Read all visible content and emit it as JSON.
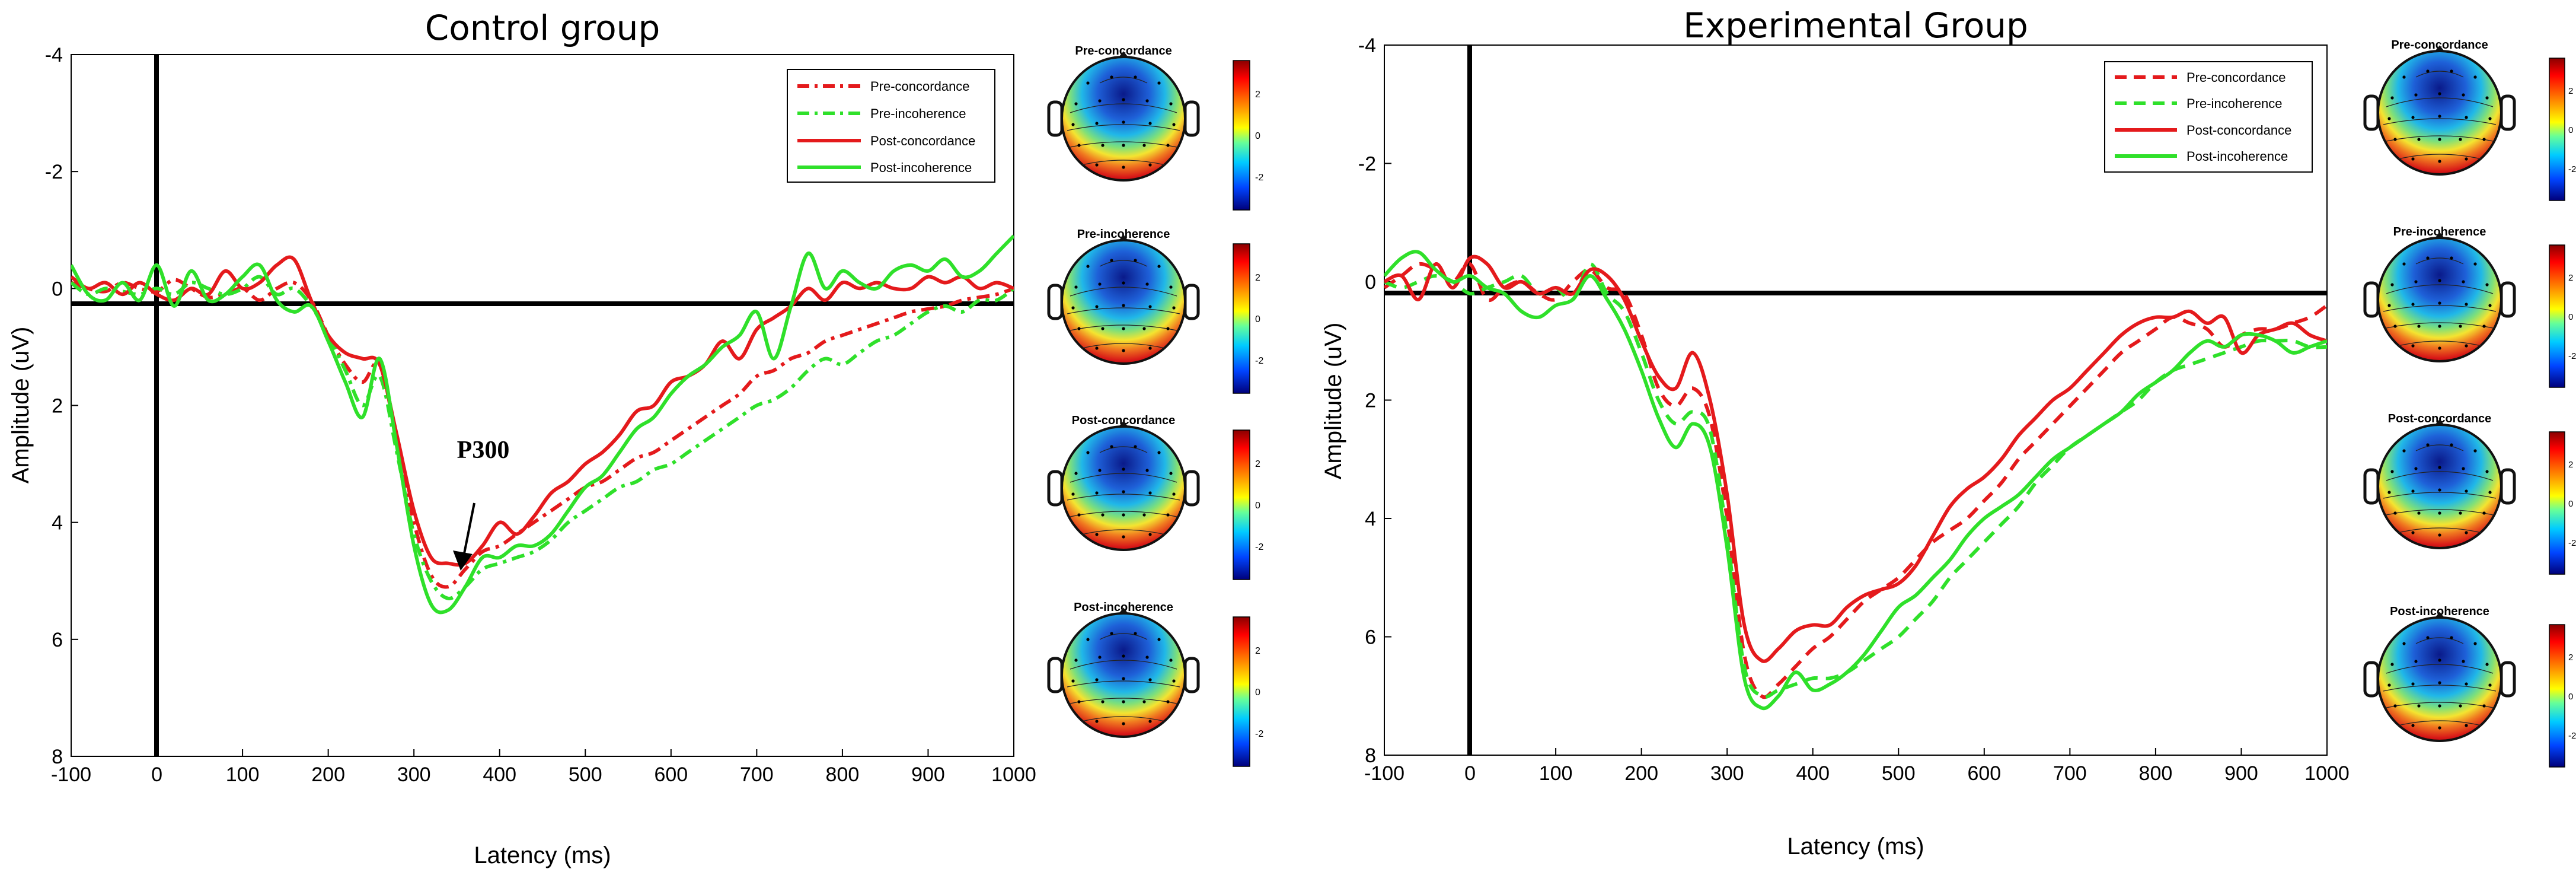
{
  "colors": {
    "red": "#e41a1c",
    "green": "#2fe02a",
    "axis": "#000000"
  },
  "legend_labels": [
    "Pre-concordance",
    "Pre-incoherence",
    "Post-concordance",
    "Post-incoherence"
  ],
  "topomap_scale": {
    "ticks": [
      "2",
      "0",
      "-2"
    ]
  },
  "chart_data": [
    {
      "type": "line",
      "title": "Control group",
      "xlabel": "Latency (ms)",
      "ylabel": "Amplitude (uV)",
      "xlim": [
        -100,
        1000
      ],
      "ylim": [
        -4,
        8
      ],
      "y_inverted": true,
      "xticks": [
        -100,
        0,
        100,
        200,
        300,
        400,
        500,
        600,
        700,
        800,
        900,
        1000
      ],
      "yticks": [
        -4,
        -2,
        0,
        2,
        4,
        6,
        8
      ],
      "legend_position": "top-right",
      "annotation": {
        "text": "P300",
        "x": 350,
        "y": 4.4
      },
      "series": [
        {
          "name": "Pre-concordance",
          "color": "#e41a1c",
          "dash": "dashdot",
          "x": [
            -100,
            -80,
            -60,
            -40,
            -20,
            0,
            20,
            40,
            60,
            80,
            100,
            120,
            140,
            160,
            180,
            200,
            220,
            240,
            260,
            280,
            300,
            320,
            340,
            360,
            380,
            400,
            420,
            440,
            460,
            480,
            500,
            520,
            540,
            560,
            580,
            600,
            620,
            640,
            660,
            680,
            700,
            720,
            740,
            760,
            780,
            800,
            820,
            840,
            860,
            880,
            900,
            920,
            940,
            960,
            980,
            1000
          ],
          "y": [
            -0.1,
            0.0,
            0.05,
            -0.1,
            0.0,
            0.05,
            -0.15,
            0.0,
            0.15,
            0.1,
            0.0,
            0.2,
            0.0,
            -0.1,
            0.2,
            0.8,
            1.3,
            1.6,
            1.3,
            2.6,
            4.0,
            4.9,
            5.1,
            4.8,
            4.5,
            4.4,
            4.2,
            4.0,
            3.8,
            3.6,
            3.4,
            3.3,
            3.1,
            2.9,
            2.8,
            2.6,
            2.4,
            2.2,
            2.0,
            1.8,
            1.5,
            1.4,
            1.2,
            1.1,
            0.9,
            0.8,
            0.7,
            0.6,
            0.5,
            0.4,
            0.35,
            0.3,
            0.2,
            0.15,
            0.1,
            0.0
          ]
        },
        {
          "name": "Pre-incoherence",
          "color": "#2fe02a",
          "dash": "dashdot",
          "x": [
            -100,
            -80,
            -60,
            -40,
            -20,
            0,
            20,
            40,
            60,
            80,
            100,
            120,
            140,
            160,
            180,
            200,
            220,
            240,
            260,
            280,
            300,
            320,
            340,
            360,
            380,
            400,
            420,
            440,
            460,
            480,
            500,
            520,
            540,
            560,
            580,
            600,
            620,
            640,
            660,
            680,
            700,
            720,
            740,
            760,
            780,
            800,
            820,
            840,
            860,
            880,
            900,
            920,
            940,
            960,
            980,
            1000
          ],
          "y": [
            -0.1,
            0.1,
            0.0,
            0.05,
            0.1,
            0.0,
            0.1,
            -0.1,
            0.0,
            0.1,
            0.0,
            -0.2,
            0.1,
            0.0,
            0.3,
            0.8,
            1.4,
            2.0,
            1.5,
            2.8,
            4.2,
            5.0,
            5.3,
            5.1,
            4.8,
            4.7,
            4.6,
            4.5,
            4.3,
            4.0,
            3.8,
            3.6,
            3.4,
            3.3,
            3.1,
            3.0,
            2.8,
            2.6,
            2.4,
            2.2,
            2.0,
            1.9,
            1.7,
            1.4,
            1.2,
            1.3,
            1.1,
            0.9,
            0.8,
            0.6,
            0.4,
            0.3,
            0.4,
            0.2,
            0.2,
            0.0
          ]
        },
        {
          "name": "Post-concordance",
          "color": "#e41a1c",
          "dash": "solid",
          "x": [
            -100,
            -80,
            -60,
            -40,
            -20,
            0,
            20,
            40,
            60,
            80,
            100,
            120,
            140,
            160,
            180,
            200,
            220,
            240,
            260,
            280,
            300,
            320,
            340,
            360,
            380,
            400,
            420,
            440,
            460,
            480,
            500,
            520,
            540,
            560,
            580,
            600,
            620,
            640,
            660,
            680,
            700,
            720,
            740,
            760,
            780,
            800,
            820,
            840,
            860,
            880,
            900,
            920,
            940,
            960,
            980,
            1000
          ],
          "y": [
            -0.2,
            0.0,
            -0.1,
            0.1,
            -0.1,
            0.1,
            0.2,
            0.0,
            0.1,
            -0.3,
            0.0,
            -0.1,
            -0.4,
            -0.5,
            0.2,
            0.8,
            1.1,
            1.2,
            1.3,
            2.5,
            3.8,
            4.6,
            4.7,
            4.7,
            4.4,
            4.0,
            4.2,
            3.9,
            3.5,
            3.3,
            3.0,
            2.8,
            2.5,
            2.1,
            2.0,
            1.6,
            1.5,
            1.3,
            0.9,
            1.2,
            0.7,
            0.5,
            0.3,
            0.0,
            0.2,
            -0.1,
            0.0,
            -0.1,
            0.0,
            0.0,
            -0.2,
            -0.1,
            -0.2,
            0.0,
            -0.1,
            0.0
          ]
        },
        {
          "name": "Post-incoherence",
          "color": "#2fe02a",
          "dash": "solid",
          "x": [
            -100,
            -80,
            -60,
            -40,
            -20,
            0,
            20,
            40,
            60,
            80,
            100,
            120,
            140,
            160,
            180,
            200,
            220,
            240,
            260,
            280,
            300,
            320,
            340,
            360,
            380,
            400,
            420,
            440,
            460,
            480,
            500,
            520,
            540,
            560,
            580,
            600,
            620,
            640,
            660,
            680,
            700,
            720,
            740,
            760,
            780,
            800,
            820,
            840,
            860,
            880,
            900,
            920,
            940,
            960,
            980,
            1000
          ],
          "y": [
            -0.4,
            0.1,
            0.2,
            -0.1,
            0.2,
            -0.4,
            0.3,
            -0.3,
            0.2,
            0.1,
            -0.2,
            -0.4,
            0.2,
            0.4,
            0.3,
            0.9,
            1.6,
            2.2,
            1.2,
            2.7,
            4.4,
            5.4,
            5.5,
            5.1,
            4.6,
            4.6,
            4.4,
            4.4,
            4.2,
            3.8,
            3.4,
            3.2,
            2.8,
            2.4,
            2.2,
            1.8,
            1.5,
            1.3,
            1.0,
            0.8,
            0.4,
            1.2,
            0.3,
            -0.6,
            0.0,
            -0.3,
            -0.1,
            0.0,
            -0.3,
            -0.4,
            -0.3,
            -0.5,
            -0.2,
            -0.3,
            -0.6,
            -0.9
          ]
        }
      ],
      "topomaps": [
        {
          "label": "Pre-concordance"
        },
        {
          "label": "Pre-incoherence"
        },
        {
          "label": "Post-concordance"
        },
        {
          "label": "Post-incoherence"
        }
      ]
    },
    {
      "type": "line",
      "title": "Experimental Group",
      "xlabel": "Latency (ms)",
      "ylabel": "Amplitude (uV)",
      "xlim": [
        -100,
        1000
      ],
      "ylim": [
        -4,
        8
      ],
      "y_inverted": true,
      "xticks": [
        -100,
        0,
        100,
        200,
        300,
        400,
        500,
        600,
        700,
        800,
        900,
        1000
      ],
      "yticks": [
        -4,
        -2,
        0,
        2,
        4,
        6,
        8
      ],
      "legend_position": "top-right",
      "series": [
        {
          "name": "Pre-concordance",
          "color": "#e41a1c",
          "dash": "dashed",
          "x": [
            -100,
            -80,
            -60,
            -40,
            -20,
            0,
            20,
            40,
            60,
            80,
            100,
            120,
            140,
            160,
            180,
            200,
            220,
            240,
            260,
            280,
            300,
            320,
            340,
            360,
            380,
            400,
            420,
            440,
            460,
            480,
            500,
            520,
            540,
            560,
            580,
            600,
            620,
            640,
            660,
            680,
            700,
            720,
            740,
            760,
            780,
            800,
            820,
            840,
            860,
            880,
            900,
            920,
            940,
            960,
            980,
            1000
          ],
          "y": [
            0.1,
            -0.1,
            -0.3,
            -0.2,
            0.0,
            -0.3,
            0.3,
            0.1,
            0.0,
            0.2,
            0.3,
            0.0,
            -0.2,
            0.1,
            0.2,
            0.9,
            1.8,
            2.1,
            1.8,
            2.3,
            4.0,
            6.3,
            7.0,
            6.8,
            6.5,
            6.2,
            6.0,
            5.7,
            5.4,
            5.2,
            5.0,
            4.7,
            4.4,
            4.2,
            4.0,
            3.7,
            3.4,
            3.0,
            2.7,
            2.4,
            2.1,
            1.8,
            1.5,
            1.2,
            1.0,
            0.8,
            0.6,
            0.7,
            0.8,
            1.1,
            0.9,
            0.8,
            0.8,
            0.7,
            0.6,
            0.4
          ]
        },
        {
          "name": "Pre-incoherence",
          "color": "#2fe02a",
          "dash": "dashed",
          "x": [
            -100,
            -80,
            -60,
            -40,
            -20,
            0,
            20,
            40,
            60,
            80,
            100,
            120,
            140,
            160,
            180,
            200,
            220,
            240,
            260,
            280,
            300,
            320,
            340,
            360,
            380,
            400,
            420,
            440,
            460,
            480,
            500,
            520,
            540,
            560,
            580,
            600,
            620,
            640,
            660,
            680,
            700,
            720,
            740,
            760,
            780,
            800,
            820,
            840,
            860,
            880,
            900,
            920,
            940,
            960,
            980,
            1000
          ],
          "y": [
            0.0,
            0.1,
            0.0,
            -0.1,
            0.0,
            0.2,
            0.1,
            0.0,
            -0.1,
            0.2,
            0.1,
            0.3,
            -0.3,
            0.2,
            0.5,
            1.2,
            2.0,
            2.4,
            2.2,
            2.5,
            4.3,
            6.5,
            7.0,
            6.9,
            6.8,
            6.7,
            6.7,
            6.6,
            6.4,
            6.2,
            6.0,
            5.7,
            5.4,
            5.0,
            4.7,
            4.4,
            4.1,
            3.8,
            3.4,
            3.1,
            2.8,
            2.6,
            2.4,
            2.2,
            2.0,
            1.7,
            1.5,
            1.4,
            1.3,
            1.2,
            1.1,
            1.0,
            1.0,
            1.0,
            1.1,
            1.1
          ]
        },
        {
          "name": "Post-concordance",
          "color": "#e41a1c",
          "dash": "solid",
          "x": [
            -100,
            -80,
            -60,
            -40,
            -20,
            0,
            20,
            40,
            60,
            80,
            100,
            120,
            140,
            160,
            180,
            200,
            220,
            240,
            260,
            280,
            300,
            320,
            340,
            360,
            380,
            400,
            420,
            440,
            460,
            480,
            500,
            520,
            540,
            560,
            580,
            600,
            620,
            640,
            660,
            680,
            700,
            720,
            740,
            760,
            780,
            800,
            820,
            840,
            860,
            880,
            900,
            920,
            940,
            960,
            980,
            1000
          ],
          "y": [
            0.0,
            -0.1,
            0.3,
            -0.3,
            0.1,
            -0.4,
            -0.3,
            0.1,
            0.0,
            0.2,
            0.1,
            0.2,
            -0.2,
            -0.1,
            0.3,
            1.0,
            1.6,
            1.8,
            1.2,
            2.0,
            3.6,
            5.8,
            6.4,
            6.2,
            5.9,
            5.8,
            5.8,
            5.5,
            5.3,
            5.2,
            5.1,
            4.8,
            4.3,
            3.8,
            3.5,
            3.3,
            3.0,
            2.6,
            2.3,
            2.0,
            1.8,
            1.5,
            1.2,
            0.9,
            0.7,
            0.6,
            0.6,
            0.5,
            0.7,
            0.6,
            1.2,
            0.9,
            0.8,
            0.7,
            0.9,
            1.0
          ]
        },
        {
          "name": "Post-incoherence",
          "color": "#2fe02a",
          "dash": "solid",
          "x": [
            -100,
            -80,
            -60,
            -40,
            -20,
            0,
            20,
            40,
            60,
            80,
            100,
            120,
            140,
            160,
            180,
            200,
            220,
            240,
            260,
            280,
            300,
            320,
            340,
            360,
            380,
            400,
            420,
            440,
            460,
            480,
            500,
            520,
            540,
            560,
            580,
            600,
            620,
            640,
            660,
            680,
            700,
            720,
            740,
            760,
            780,
            800,
            820,
            840,
            860,
            880,
            900,
            920,
            940,
            960,
            980,
            1000
          ],
          "y": [
            -0.1,
            -0.4,
            -0.5,
            -0.2,
            0.0,
            -0.1,
            0.1,
            0.2,
            0.5,
            0.6,
            0.4,
            0.3,
            -0.1,
            0.3,
            0.8,
            1.5,
            2.3,
            2.8,
            2.4,
            2.8,
            4.5,
            6.7,
            7.2,
            7.0,
            6.6,
            6.9,
            6.8,
            6.6,
            6.3,
            5.9,
            5.5,
            5.3,
            5.0,
            4.7,
            4.3,
            4.0,
            3.8,
            3.6,
            3.3,
            3.0,
            2.8,
            2.6,
            2.4,
            2.2,
            1.9,
            1.7,
            1.5,
            1.2,
            1.0,
            1.1,
            0.9,
            0.9,
            1.0,
            1.2,
            1.1,
            1.0
          ]
        }
      ],
      "topomaps": [
        {
          "label": "Pre-concordance"
        },
        {
          "label": "Pre-incoherence"
        },
        {
          "label": "Post-concordance"
        },
        {
          "label": "Post-incoherence"
        }
      ]
    }
  ]
}
